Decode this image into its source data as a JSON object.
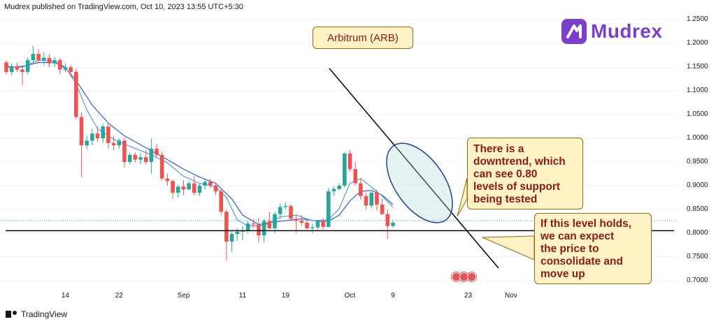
{
  "header": {
    "published": "Mudrex published on TradingView.com, Oct 10, 2023 13:55 UTC+5:30"
  },
  "title_box": {
    "label": "Arbitrum (ARB)"
  },
  "logo": {
    "text": "Mudrex",
    "icon": "mudrex-logo-icon",
    "color": "#7b3fc9"
  },
  "footer": {
    "brand": "TradingView",
    "icon": "tradingview-logo-icon"
  },
  "notes": {
    "downtrend": "There is a\ndowntrend, which\ncan see 0.80\nlevels of support\nbeing tested",
    "holds": "If this level holds,\nwe can expect\nthe price to\nconsolidate and\nmove up"
  },
  "colors": {
    "up": "#26a69a",
    "down": "#ef5350",
    "ma_fast": "#5b9bd5",
    "ma_slow": "#2f5fd0",
    "ellipse": "#1f3f8f",
    "note_bg": "#fff2c4",
    "note_text": "#8b1a1a"
  },
  "chart_data": {
    "type": "candlestick",
    "symbol": "Arbitrum (ARB)",
    "ylim": [
      0.695,
      1.255
    ],
    "yticks": [
      "1.2500",
      "1.2000",
      "1.1500",
      "1.1000",
      "1.0500",
      "1.0000",
      "0.9500",
      "0.9000",
      "0.8500",
      "0.8000",
      "0.7500",
      "0.7000"
    ],
    "ytick_values": [
      1.25,
      1.2,
      1.15,
      1.1,
      1.05,
      1.0,
      0.95,
      0.9,
      0.85,
      0.8,
      0.75,
      0.7
    ],
    "xticks": [
      {
        "label": "14",
        "idx": 11
      },
      {
        "label": "22",
        "idx": 21
      },
      {
        "label": "Sep",
        "idx": 33
      },
      {
        "label": "11",
        "idx": 44
      },
      {
        "label": "19",
        "idx": 52
      },
      {
        "label": "Oct",
        "idx": 64
      },
      {
        "label": "9",
        "idx": 72
      },
      {
        "label": "23",
        "idx": 86
      },
      {
        "label": "Nov",
        "idx": 94
      }
    ],
    "candles": [
      [
        1.16,
        1.165,
        1.135,
        1.14
      ],
      [
        1.14,
        1.158,
        1.133,
        1.152
      ],
      [
        1.152,
        1.16,
        1.14,
        1.145
      ],
      [
        1.145,
        1.152,
        1.112,
        1.14
      ],
      [
        1.14,
        1.17,
        1.135,
        1.165
      ],
      [
        1.165,
        1.195,
        1.16,
        1.178
      ],
      [
        1.178,
        1.188,
        1.158,
        1.165
      ],
      [
        1.165,
        1.182,
        1.155,
        1.17
      ],
      [
        1.17,
        1.178,
        1.15,
        1.158
      ],
      [
        1.158,
        1.172,
        1.15,
        1.165
      ],
      [
        1.165,
        1.17,
        1.135,
        1.145
      ],
      [
        1.145,
        1.158,
        1.14,
        1.15
      ],
      [
        1.15,
        1.155,
        1.13,
        1.14
      ],
      [
        1.14,
        1.148,
        1.04,
        1.045
      ],
      [
        1.045,
        1.055,
        0.918,
        0.985
      ],
      [
        0.985,
        1.005,
        0.978,
        0.995
      ],
      [
        0.995,
        1.02,
        0.985,
        1.01
      ],
      [
        1.01,
        1.025,
        0.993,
        1.0
      ],
      [
        1.0,
        1.03,
        0.99,
        1.025
      ],
      [
        1.025,
        1.03,
        0.978,
        0.99
      ],
      [
        0.99,
        1.005,
        0.975,
        0.985
      ],
      [
        0.985,
        1.0,
        0.978,
        0.995
      ],
      [
        0.995,
        1.0,
        0.938,
        0.95
      ],
      [
        0.95,
        0.97,
        0.945,
        0.965
      ],
      [
        0.965,
        0.97,
        0.948,
        0.955
      ],
      [
        0.955,
        0.968,
        0.945,
        0.96
      ],
      [
        0.96,
        0.975,
        0.945,
        0.95
      ],
      [
        0.95,
        1.0,
        0.925,
        0.978
      ],
      [
        0.978,
        0.988,
        0.96,
        0.965
      ],
      [
        0.965,
        0.972,
        0.91,
        0.915
      ],
      [
        0.915,
        0.925,
        0.9,
        0.91
      ],
      [
        0.91,
        0.912,
        0.872,
        0.885
      ],
      [
        0.885,
        0.902,
        0.875,
        0.898
      ],
      [
        0.898,
        0.912,
        0.88,
        0.892
      ],
      [
        0.892,
        0.91,
        0.89,
        0.905
      ],
      [
        0.905,
        0.92,
        0.88,
        0.885
      ],
      [
        0.885,
        0.905,
        0.878,
        0.9
      ],
      [
        0.9,
        0.915,
        0.892,
        0.908
      ],
      [
        0.908,
        0.915,
        0.895,
        0.9
      ],
      [
        0.9,
        0.905,
        0.88,
        0.888
      ],
      [
        0.888,
        0.895,
        0.838,
        0.845
      ],
      [
        0.845,
        0.85,
        0.742,
        0.782
      ],
      [
        0.782,
        0.805,
        0.76,
        0.798
      ],
      [
        0.798,
        0.81,
        0.783,
        0.803
      ],
      [
        0.803,
        0.815,
        0.785,
        0.805
      ],
      [
        0.805,
        0.825,
        0.8,
        0.82
      ],
      [
        0.82,
        0.83,
        0.81,
        0.818
      ],
      [
        0.818,
        0.832,
        0.78,
        0.795
      ],
      [
        0.795,
        0.83,
        0.78,
        0.825
      ],
      [
        0.825,
        0.845,
        0.808,
        0.81
      ],
      [
        0.81,
        0.845,
        0.8,
        0.84
      ],
      [
        0.84,
        0.862,
        0.83,
        0.855
      ],
      [
        0.855,
        0.865,
        0.85,
        0.857
      ],
      [
        0.857,
        0.86,
        0.825,
        0.83
      ],
      [
        0.83,
        0.838,
        0.8,
        0.826
      ],
      [
        0.826,
        0.838,
        0.815,
        0.822
      ],
      [
        0.822,
        0.828,
        0.808,
        0.81
      ],
      [
        0.81,
        0.82,
        0.8,
        0.812
      ],
      [
        0.812,
        0.828,
        0.808,
        0.825
      ],
      [
        0.825,
        0.832,
        0.808,
        0.813
      ],
      [
        0.813,
        0.895,
        0.812,
        0.888
      ],
      [
        0.888,
        0.898,
        0.878,
        0.893
      ],
      [
        0.893,
        0.905,
        0.89,
        0.9
      ],
      [
        0.9,
        0.97,
        0.895,
        0.968
      ],
      [
        0.968,
        0.975,
        0.93,
        0.935
      ],
      [
        0.935,
        0.95,
        0.9,
        0.905
      ],
      [
        0.905,
        0.915,
        0.87,
        0.878
      ],
      [
        0.878,
        0.885,
        0.85,
        0.858
      ],
      [
        0.858,
        0.888,
        0.852,
        0.885
      ],
      [
        0.885,
        0.892,
        0.848,
        0.86
      ],
      [
        0.86,
        0.872,
        0.838,
        0.84
      ],
      [
        0.84,
        0.85,
        0.788,
        0.815
      ],
      [
        0.815,
        0.826,
        0.812,
        0.822
      ]
    ],
    "ma_fast": [
      [
        0,
        1.152
      ],
      [
        3,
        1.15
      ],
      [
        6,
        1.165
      ],
      [
        9,
        1.163
      ],
      [
        11,
        1.15
      ],
      [
        13,
        1.115
      ],
      [
        15,
        1.06
      ],
      [
        17,
        1.02
      ],
      [
        20,
        0.998
      ],
      [
        23,
        0.983
      ],
      [
        27,
        0.965
      ],
      [
        30,
        0.948
      ],
      [
        33,
        0.92
      ],
      [
        36,
        0.905
      ],
      [
        39,
        0.898
      ],
      [
        41,
        0.875
      ],
      [
        43,
        0.828
      ],
      [
        45,
        0.815
      ],
      [
        48,
        0.816
      ],
      [
        51,
        0.834
      ],
      [
        54,
        0.838
      ],
      [
        57,
        0.826
      ],
      [
        60,
        0.828
      ],
      [
        62,
        0.852
      ],
      [
        64,
        0.905
      ],
      [
        66,
        0.915
      ],
      [
        68,
        0.897
      ],
      [
        70,
        0.878
      ],
      [
        72,
        0.854
      ]
    ],
    "ma_slow": [
      [
        0,
        1.15
      ],
      [
        3,
        1.152
      ],
      [
        6,
        1.16
      ],
      [
        9,
        1.16
      ],
      [
        11,
        1.148
      ],
      [
        13,
        1.122
      ],
      [
        16,
        1.07
      ],
      [
        19,
        1.032
      ],
      [
        22,
        1.005
      ],
      [
        26,
        0.98
      ],
      [
        30,
        0.955
      ],
      [
        33,
        0.935
      ],
      [
        36,
        0.918
      ],
      [
        39,
        0.905
      ],
      [
        42,
        0.872
      ],
      [
        44,
        0.838
      ],
      [
        47,
        0.818
      ],
      [
        51,
        0.825
      ],
      [
        55,
        0.83
      ],
      [
        58,
        0.825
      ],
      [
        60,
        0.825
      ],
      [
        62,
        0.838
      ],
      [
        64,
        0.868
      ],
      [
        66,
        0.888
      ],
      [
        68,
        0.89
      ],
      [
        70,
        0.88
      ],
      [
        72,
        0.86
      ]
    ],
    "support_level": 0.805,
    "trendline": [
      [
        471,
        98
      ],
      [
        713,
        384
      ]
    ],
    "annotations": [
      "There is a downtrend, which can see 0.80 levels of support being tested",
      "If this level holds, we can expect the price to consolidate and move up"
    ]
  }
}
